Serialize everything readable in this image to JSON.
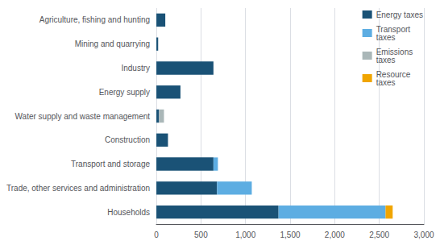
{
  "chart_data": {
    "type": "bar",
    "orientation": "horizontal",
    "stacked": true,
    "categories": [
      "Households",
      "Trade, other services and administration",
      "Transport and storage",
      "Construction",
      "Water supply and waste management",
      "Energy supply",
      "Industry",
      "Mining and quarrying",
      "Agriculture, fishing and hunting"
    ],
    "series": [
      {
        "name": "Energy taxes",
        "color": "#1a5276",
        "values": [
          1370,
          680,
          640,
          130,
          30,
          270,
          640,
          20,
          100
        ]
      },
      {
        "name": "Transport\ntaxes",
        "color": "#5dade2",
        "values": [
          1200,
          390,
          50,
          0,
          0,
          0,
          0,
          0,
          0
        ]
      },
      {
        "name": "Emissions\ntaxes",
        "color": "#aab7b8",
        "values": [
          0,
          0,
          0,
          0,
          55,
          0,
          0,
          0,
          0
        ]
      },
      {
        "name": "Resource\ntaxes",
        "color": "#f0a500",
        "values": [
          80,
          0,
          0,
          0,
          0,
          0,
          0,
          0,
          0
        ]
      }
    ],
    "xlim": [
      0,
      3000
    ],
    "xticks": [
      0,
      500,
      1000,
      1500,
      2000,
      2500,
      3000
    ],
    "grid": true,
    "legend": "upper right"
  }
}
